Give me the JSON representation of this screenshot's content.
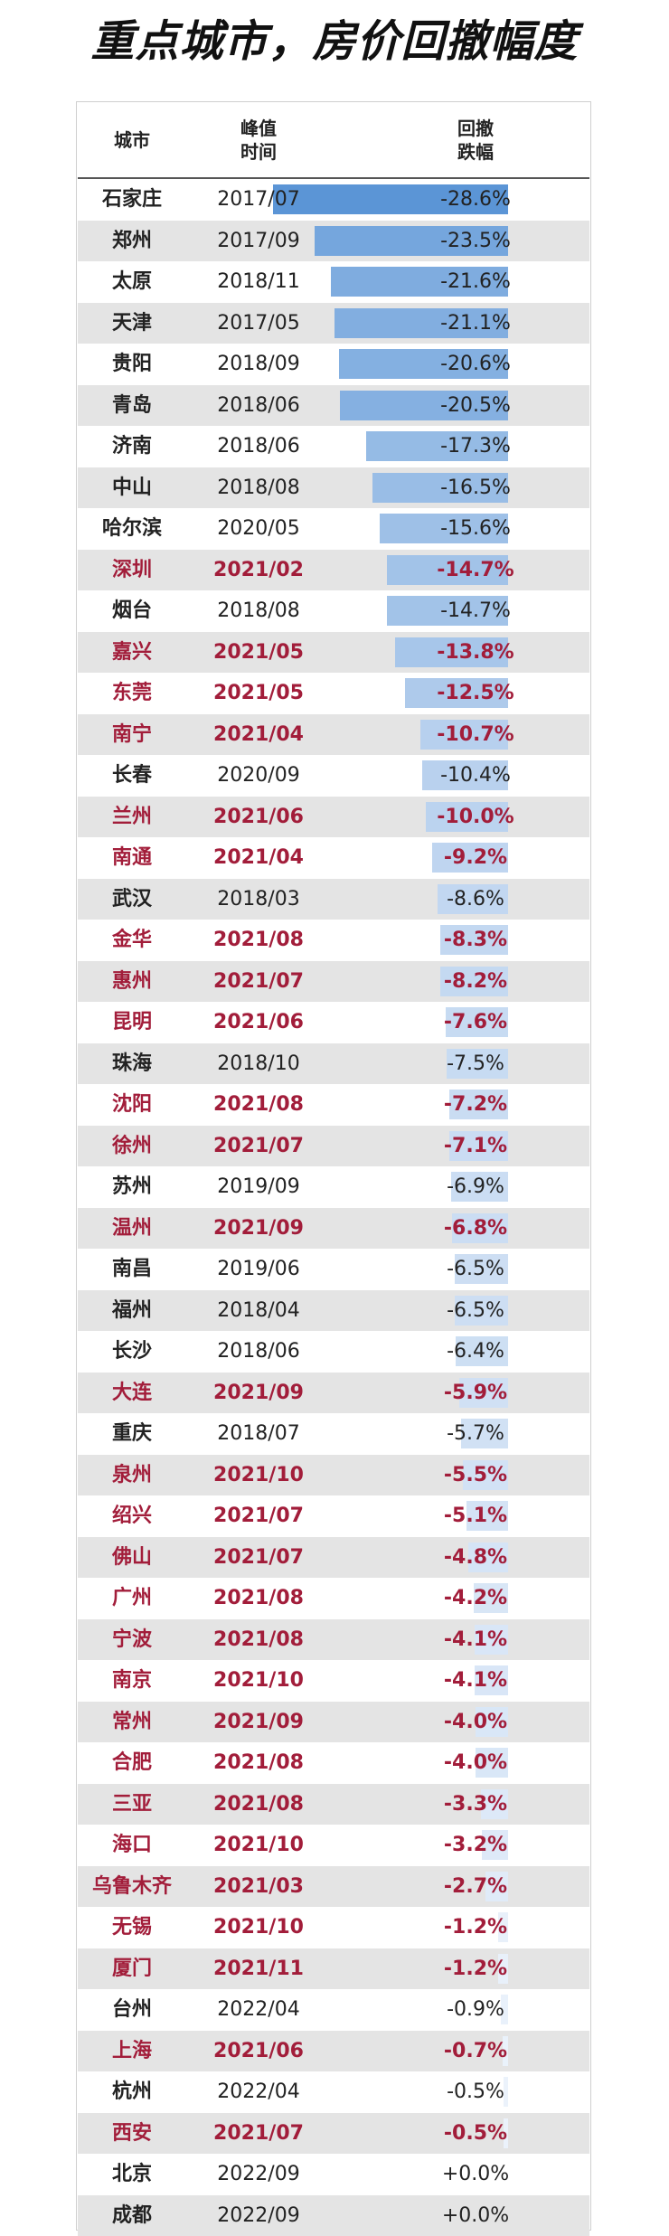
{
  "title": "重点城市，房价回撤幅度",
  "header": {
    "city": "城市",
    "peak_time": "峰值\n时间",
    "drawdown": "回撤\n跌幅"
  },
  "colors": {
    "highlight_text": "#a21d3a",
    "bar_strong": "#5b95d6",
    "bar_light": "#eef4fc",
    "stripe": "#e4e4e4"
  },
  "chart_data": {
    "type": "table",
    "title": "重点城市，房价回撤幅度",
    "columns": [
      "城市",
      "峰值时间",
      "回撤跌幅"
    ],
    "rows": [
      {
        "city": "石家庄",
        "peak": "2017/07",
        "drawdown": "-28.6%",
        "value": -28.6,
        "highlight": false
      },
      {
        "city": "郑州",
        "peak": "2017/09",
        "drawdown": "-23.5%",
        "value": -23.5,
        "highlight": false
      },
      {
        "city": "太原",
        "peak": "2018/11",
        "drawdown": "-21.6%",
        "value": -21.6,
        "highlight": false
      },
      {
        "city": "天津",
        "peak": "2017/05",
        "drawdown": "-21.1%",
        "value": -21.1,
        "highlight": false
      },
      {
        "city": "贵阳",
        "peak": "2018/09",
        "drawdown": "-20.6%",
        "value": -20.6,
        "highlight": false
      },
      {
        "city": "青岛",
        "peak": "2018/06",
        "drawdown": "-20.5%",
        "value": -20.5,
        "highlight": false
      },
      {
        "city": "济南",
        "peak": "2018/06",
        "drawdown": "-17.3%",
        "value": -17.3,
        "highlight": false
      },
      {
        "city": "中山",
        "peak": "2018/08",
        "drawdown": "-16.5%",
        "value": -16.5,
        "highlight": false
      },
      {
        "city": "哈尔滨",
        "peak": "2020/05",
        "drawdown": "-15.6%",
        "value": -15.6,
        "highlight": false
      },
      {
        "city": "深圳",
        "peak": "2021/02",
        "drawdown": "-14.7%",
        "value": -14.7,
        "highlight": true
      },
      {
        "city": "烟台",
        "peak": "2018/08",
        "drawdown": "-14.7%",
        "value": -14.7,
        "highlight": false
      },
      {
        "city": "嘉兴",
        "peak": "2021/05",
        "drawdown": "-13.8%",
        "value": -13.8,
        "highlight": true
      },
      {
        "city": "东莞",
        "peak": "2021/05",
        "drawdown": "-12.5%",
        "value": -12.5,
        "highlight": true
      },
      {
        "city": "南宁",
        "peak": "2021/04",
        "drawdown": "-10.7%",
        "value": -10.7,
        "highlight": true
      },
      {
        "city": "长春",
        "peak": "2020/09",
        "drawdown": "-10.4%",
        "value": -10.4,
        "highlight": false
      },
      {
        "city": "兰州",
        "peak": "2021/06",
        "drawdown": "-10.0%",
        "value": -10.0,
        "highlight": true
      },
      {
        "city": "南通",
        "peak": "2021/04",
        "drawdown": "-9.2%",
        "value": -9.2,
        "highlight": true
      },
      {
        "city": "武汉",
        "peak": "2018/03",
        "drawdown": "-8.6%",
        "value": -8.6,
        "highlight": false
      },
      {
        "city": "金华",
        "peak": "2021/08",
        "drawdown": "-8.3%",
        "value": -8.3,
        "highlight": true
      },
      {
        "city": "惠州",
        "peak": "2021/07",
        "drawdown": "-8.2%",
        "value": -8.2,
        "highlight": true
      },
      {
        "city": "昆明",
        "peak": "2021/06",
        "drawdown": "-7.6%",
        "value": -7.6,
        "highlight": true
      },
      {
        "city": "珠海",
        "peak": "2018/10",
        "drawdown": "-7.5%",
        "value": -7.5,
        "highlight": false
      },
      {
        "city": "沈阳",
        "peak": "2021/08",
        "drawdown": "-7.2%",
        "value": -7.2,
        "highlight": true
      },
      {
        "city": "徐州",
        "peak": "2021/07",
        "drawdown": "-7.1%",
        "value": -7.1,
        "highlight": true
      },
      {
        "city": "苏州",
        "peak": "2019/09",
        "drawdown": "-6.9%",
        "value": -6.9,
        "highlight": false
      },
      {
        "city": "温州",
        "peak": "2021/09",
        "drawdown": "-6.8%",
        "value": -6.8,
        "highlight": true
      },
      {
        "city": "南昌",
        "peak": "2019/06",
        "drawdown": "-6.5%",
        "value": -6.5,
        "highlight": false
      },
      {
        "city": "福州",
        "peak": "2018/04",
        "drawdown": "-6.5%",
        "value": -6.5,
        "highlight": false
      },
      {
        "city": "长沙",
        "peak": "2018/06",
        "drawdown": "-6.4%",
        "value": -6.4,
        "highlight": false
      },
      {
        "city": "大连",
        "peak": "2021/09",
        "drawdown": "-5.9%",
        "value": -5.9,
        "highlight": true
      },
      {
        "city": "重庆",
        "peak": "2018/07",
        "drawdown": "-5.7%",
        "value": -5.7,
        "highlight": false
      },
      {
        "city": "泉州",
        "peak": "2021/10",
        "drawdown": "-5.5%",
        "value": -5.5,
        "highlight": true
      },
      {
        "city": "绍兴",
        "peak": "2021/07",
        "drawdown": "-5.1%",
        "value": -5.1,
        "highlight": true
      },
      {
        "city": "佛山",
        "peak": "2021/07",
        "drawdown": "-4.8%",
        "value": -4.8,
        "highlight": true
      },
      {
        "city": "广州",
        "peak": "2021/08",
        "drawdown": "-4.2%",
        "value": -4.2,
        "highlight": true
      },
      {
        "city": "宁波",
        "peak": "2021/08",
        "drawdown": "-4.1%",
        "value": -4.1,
        "highlight": true
      },
      {
        "city": "南京",
        "peak": "2021/10",
        "drawdown": "-4.1%",
        "value": -4.1,
        "highlight": true
      },
      {
        "city": "常州",
        "peak": "2021/09",
        "drawdown": "-4.0%",
        "value": -4.0,
        "highlight": true
      },
      {
        "city": "合肥",
        "peak": "2021/08",
        "drawdown": "-4.0%",
        "value": -4.0,
        "highlight": true
      },
      {
        "city": "三亚",
        "peak": "2021/08",
        "drawdown": "-3.3%",
        "value": -3.3,
        "highlight": true
      },
      {
        "city": "海口",
        "peak": "2021/10",
        "drawdown": "-3.2%",
        "value": -3.2,
        "highlight": true
      },
      {
        "city": "乌鲁木齐",
        "peak": "2021/03",
        "drawdown": "-2.7%",
        "value": -2.7,
        "highlight": true
      },
      {
        "city": "无锡",
        "peak": "2021/10",
        "drawdown": "-1.2%",
        "value": -1.2,
        "highlight": true
      },
      {
        "city": "厦门",
        "peak": "2021/11",
        "drawdown": "-1.2%",
        "value": -1.2,
        "highlight": true
      },
      {
        "city": "台州",
        "peak": "2022/04",
        "drawdown": "-0.9%",
        "value": -0.9,
        "highlight": false
      },
      {
        "city": "上海",
        "peak": "2021/06",
        "drawdown": "-0.7%",
        "value": -0.7,
        "highlight": true
      },
      {
        "city": "杭州",
        "peak": "2022/04",
        "drawdown": "-0.5%",
        "value": -0.5,
        "highlight": false
      },
      {
        "city": "西安",
        "peak": "2021/07",
        "drawdown": "-0.5%",
        "value": -0.5,
        "highlight": true
      },
      {
        "city": "北京",
        "peak": "2022/09",
        "drawdown": "+0.0%",
        "value": 0.0,
        "highlight": false
      },
      {
        "city": "成都",
        "peak": "2022/09",
        "drawdown": "+0.0%",
        "value": 0.0,
        "highlight": false
      }
    ]
  }
}
